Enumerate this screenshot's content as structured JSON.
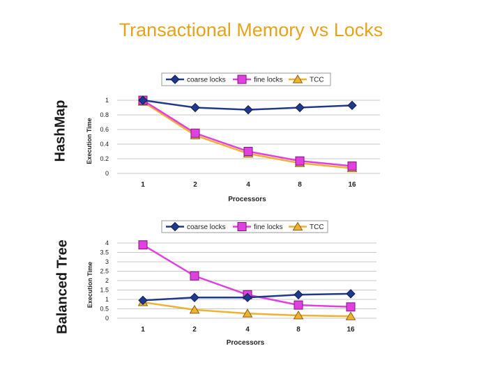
{
  "slide": {
    "title": "Transactional Memory vs Locks"
  },
  "panels": {
    "top_label": "HashMap",
    "bottom_label": "Balanced Tree"
  },
  "colors": {
    "coarse": "#1f3a8a",
    "fine": "#e040e0",
    "tcc": "#f0b030",
    "grid": "#c8c8c8",
    "legend_border": "#9a9a9a"
  },
  "chart_data": [
    {
      "type": "line",
      "title": "HashMap",
      "categories": [
        "1",
        "2",
        "4",
        "8",
        "16"
      ],
      "xlabel": "Processors",
      "ylabel": "Execution Time",
      "ylim": [
        0,
        1
      ],
      "yticks": [
        "0",
        "0.2",
        "0.4",
        "0.6",
        "0.8",
        "1"
      ],
      "grid": true,
      "legend_position": "top",
      "series": [
        {
          "name": "coarse locks",
          "marker": "diamond",
          "values": [
            1.0,
            0.9,
            0.87,
            0.9,
            0.93
          ]
        },
        {
          "name": "fine locks",
          "marker": "square",
          "values": [
            1.0,
            0.55,
            0.3,
            0.17,
            0.1
          ]
        },
        {
          "name": "TCC",
          "marker": "triangle",
          "values": [
            0.98,
            0.52,
            0.27,
            0.14,
            0.07
          ]
        }
      ]
    },
    {
      "type": "line",
      "title": "Balanced Tree",
      "categories": [
        "1",
        "2",
        "4",
        "8",
        "16"
      ],
      "xlabel": "Processors",
      "ylabel": "Execution Time",
      "ylim": [
        0,
        4
      ],
      "yticks": [
        "0",
        "0.5",
        "1",
        "1.5",
        "2",
        "2.5",
        "3",
        "3.5",
        "4"
      ],
      "grid": true,
      "legend_position": "top",
      "series": [
        {
          "name": "coarse locks",
          "marker": "diamond",
          "values": [
            0.95,
            1.1,
            1.1,
            1.25,
            1.3
          ]
        },
        {
          "name": "fine locks",
          "marker": "square",
          "values": [
            3.9,
            2.25,
            1.25,
            0.7,
            0.6
          ]
        },
        {
          "name": "TCC",
          "marker": "triangle",
          "values": [
            0.85,
            0.45,
            0.25,
            0.15,
            0.1
          ]
        }
      ]
    }
  ]
}
